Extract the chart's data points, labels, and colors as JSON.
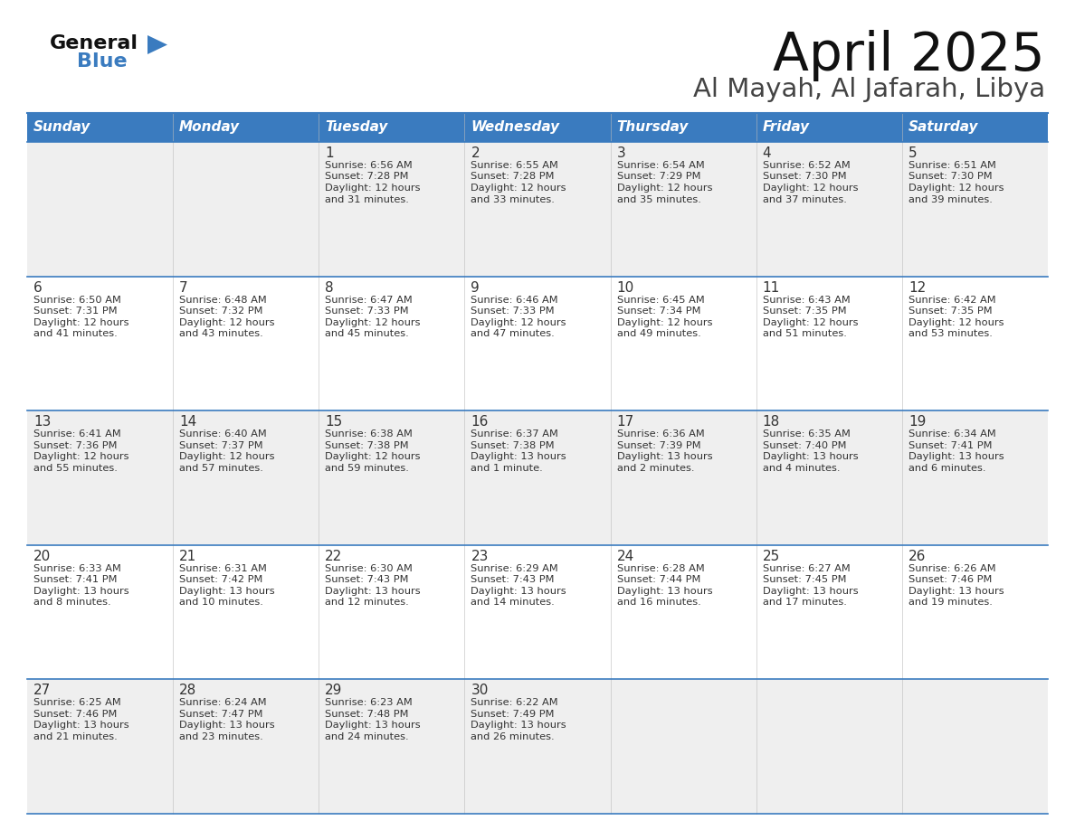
{
  "title": "April 2025",
  "subtitle": "Al Mayah, Al Jafarah, Libya",
  "header_bg": "#3a7bbf",
  "header_text": "#ffffff",
  "days_of_week": [
    "Sunday",
    "Monday",
    "Tuesday",
    "Wednesday",
    "Thursday",
    "Friday",
    "Saturday"
  ],
  "row_bg_even": "#efefef",
  "row_bg_odd": "#ffffff",
  "cell_border": "#3a7bbf",
  "text_color": "#333333",
  "title_color": "#111111",
  "subtitle_color": "#444444",
  "calendar": [
    [
      {
        "day": "",
        "lines": []
      },
      {
        "day": "",
        "lines": []
      },
      {
        "day": "1",
        "lines": [
          "Sunrise: 6:56 AM",
          "Sunset: 7:28 PM",
          "Daylight: 12 hours",
          "and 31 minutes."
        ]
      },
      {
        "day": "2",
        "lines": [
          "Sunrise: 6:55 AM",
          "Sunset: 7:28 PM",
          "Daylight: 12 hours",
          "and 33 minutes."
        ]
      },
      {
        "day": "3",
        "lines": [
          "Sunrise: 6:54 AM",
          "Sunset: 7:29 PM",
          "Daylight: 12 hours",
          "and 35 minutes."
        ]
      },
      {
        "day": "4",
        "lines": [
          "Sunrise: 6:52 AM",
          "Sunset: 7:30 PM",
          "Daylight: 12 hours",
          "and 37 minutes."
        ]
      },
      {
        "day": "5",
        "lines": [
          "Sunrise: 6:51 AM",
          "Sunset: 7:30 PM",
          "Daylight: 12 hours",
          "and 39 minutes."
        ]
      }
    ],
    [
      {
        "day": "6",
        "lines": [
          "Sunrise: 6:50 AM",
          "Sunset: 7:31 PM",
          "Daylight: 12 hours",
          "and 41 minutes."
        ]
      },
      {
        "day": "7",
        "lines": [
          "Sunrise: 6:48 AM",
          "Sunset: 7:32 PM",
          "Daylight: 12 hours",
          "and 43 minutes."
        ]
      },
      {
        "day": "8",
        "lines": [
          "Sunrise: 6:47 AM",
          "Sunset: 7:33 PM",
          "Daylight: 12 hours",
          "and 45 minutes."
        ]
      },
      {
        "day": "9",
        "lines": [
          "Sunrise: 6:46 AM",
          "Sunset: 7:33 PM",
          "Daylight: 12 hours",
          "and 47 minutes."
        ]
      },
      {
        "day": "10",
        "lines": [
          "Sunrise: 6:45 AM",
          "Sunset: 7:34 PM",
          "Daylight: 12 hours",
          "and 49 minutes."
        ]
      },
      {
        "day": "11",
        "lines": [
          "Sunrise: 6:43 AM",
          "Sunset: 7:35 PM",
          "Daylight: 12 hours",
          "and 51 minutes."
        ]
      },
      {
        "day": "12",
        "lines": [
          "Sunrise: 6:42 AM",
          "Sunset: 7:35 PM",
          "Daylight: 12 hours",
          "and 53 minutes."
        ]
      }
    ],
    [
      {
        "day": "13",
        "lines": [
          "Sunrise: 6:41 AM",
          "Sunset: 7:36 PM",
          "Daylight: 12 hours",
          "and 55 minutes."
        ]
      },
      {
        "day": "14",
        "lines": [
          "Sunrise: 6:40 AM",
          "Sunset: 7:37 PM",
          "Daylight: 12 hours",
          "and 57 minutes."
        ]
      },
      {
        "day": "15",
        "lines": [
          "Sunrise: 6:38 AM",
          "Sunset: 7:38 PM",
          "Daylight: 12 hours",
          "and 59 minutes."
        ]
      },
      {
        "day": "16",
        "lines": [
          "Sunrise: 6:37 AM",
          "Sunset: 7:38 PM",
          "Daylight: 13 hours",
          "and 1 minute."
        ]
      },
      {
        "day": "17",
        "lines": [
          "Sunrise: 6:36 AM",
          "Sunset: 7:39 PM",
          "Daylight: 13 hours",
          "and 2 minutes."
        ]
      },
      {
        "day": "18",
        "lines": [
          "Sunrise: 6:35 AM",
          "Sunset: 7:40 PM",
          "Daylight: 13 hours",
          "and 4 minutes."
        ]
      },
      {
        "day": "19",
        "lines": [
          "Sunrise: 6:34 AM",
          "Sunset: 7:41 PM",
          "Daylight: 13 hours",
          "and 6 minutes."
        ]
      }
    ],
    [
      {
        "day": "20",
        "lines": [
          "Sunrise: 6:33 AM",
          "Sunset: 7:41 PM",
          "Daylight: 13 hours",
          "and 8 minutes."
        ]
      },
      {
        "day": "21",
        "lines": [
          "Sunrise: 6:31 AM",
          "Sunset: 7:42 PM",
          "Daylight: 13 hours",
          "and 10 minutes."
        ]
      },
      {
        "day": "22",
        "lines": [
          "Sunrise: 6:30 AM",
          "Sunset: 7:43 PM",
          "Daylight: 13 hours",
          "and 12 minutes."
        ]
      },
      {
        "day": "23",
        "lines": [
          "Sunrise: 6:29 AM",
          "Sunset: 7:43 PM",
          "Daylight: 13 hours",
          "and 14 minutes."
        ]
      },
      {
        "day": "24",
        "lines": [
          "Sunrise: 6:28 AM",
          "Sunset: 7:44 PM",
          "Daylight: 13 hours",
          "and 16 minutes."
        ]
      },
      {
        "day": "25",
        "lines": [
          "Sunrise: 6:27 AM",
          "Sunset: 7:45 PM",
          "Daylight: 13 hours",
          "and 17 minutes."
        ]
      },
      {
        "day": "26",
        "lines": [
          "Sunrise: 6:26 AM",
          "Sunset: 7:46 PM",
          "Daylight: 13 hours",
          "and 19 minutes."
        ]
      }
    ],
    [
      {
        "day": "27",
        "lines": [
          "Sunrise: 6:25 AM",
          "Sunset: 7:46 PM",
          "Daylight: 13 hours",
          "and 21 minutes."
        ]
      },
      {
        "day": "28",
        "lines": [
          "Sunrise: 6:24 AM",
          "Sunset: 7:47 PM",
          "Daylight: 13 hours",
          "and 23 minutes."
        ]
      },
      {
        "day": "29",
        "lines": [
          "Sunrise: 6:23 AM",
          "Sunset: 7:48 PM",
          "Daylight: 13 hours",
          "and 24 minutes."
        ]
      },
      {
        "day": "30",
        "lines": [
          "Sunrise: 6:22 AM",
          "Sunset: 7:49 PM",
          "Daylight: 13 hours",
          "and 26 minutes."
        ]
      },
      {
        "day": "",
        "lines": []
      },
      {
        "day": "",
        "lines": []
      },
      {
        "day": "",
        "lines": []
      }
    ]
  ]
}
